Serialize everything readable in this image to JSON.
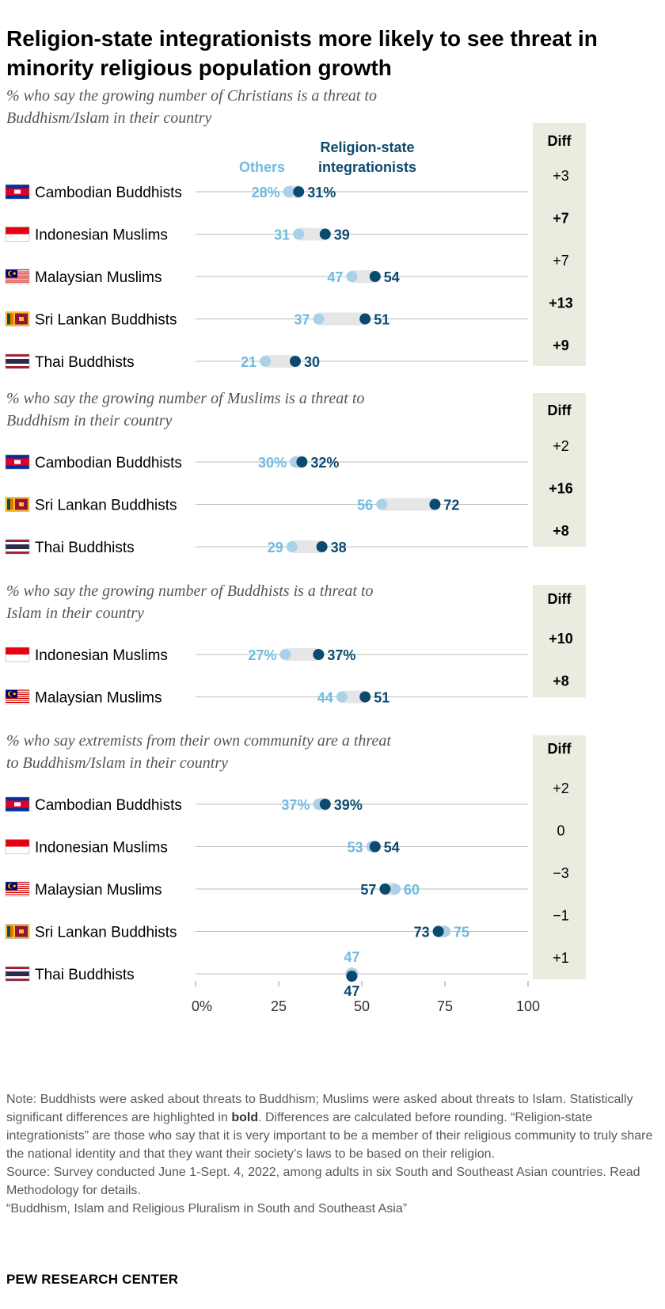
{
  "title": "Religion-state integrationists more likely to see threat in minority religious population growth",
  "legend": {
    "others": "Others",
    "integrationists_line1": "Religion-state",
    "integrationists_line2": "integrationists"
  },
  "diff_header": "Diff",
  "colors": {
    "others": "#a9d1ea",
    "others_text": "#6fbbe0",
    "integrationists": "#0b4a6f",
    "diff_bg": "#ecebdf",
    "gap_bar": "#e6e6e6",
    "axis_line": "#bdbdbd"
  },
  "chart_data": {
    "type": "dot",
    "xlim": [
      0,
      100
    ],
    "x_ticks": [
      "0%",
      "25",
      "50",
      "75",
      "100"
    ],
    "panels": [
      {
        "subtitle": [
          "% who say the growing number of Christians is a threat to",
          "Buddhism/Islam in their country"
        ],
        "rows": [
          {
            "label": "Cambodian Buddhists",
            "flag": "cambodia-flag-icon",
            "others": 28,
            "integrationists": 31,
            "others_label": "28%",
            "integrationists_label": "31%",
            "diff": "+3",
            "significant": false
          },
          {
            "label": "Indonesian Muslims",
            "flag": "indonesia-flag-icon",
            "others": 31,
            "integrationists": 39,
            "others_label": "31",
            "integrationists_label": "39",
            "diff": "+7",
            "significant": true
          },
          {
            "label": "Malaysian Muslims",
            "flag": "malaysia-flag-icon",
            "others": 47,
            "integrationists": 54,
            "others_label": "47",
            "integrationists_label": "54",
            "diff": "+7",
            "significant": false
          },
          {
            "label": "Sri Lankan Buddhists",
            "flag": "sri-lanka-flag-icon",
            "others": 37,
            "integrationists": 51,
            "others_label": "37",
            "integrationists_label": "51",
            "diff": "+13",
            "significant": true
          },
          {
            "label": "Thai Buddhists",
            "flag": "thailand-flag-icon",
            "others": 21,
            "integrationists": 30,
            "others_label": "21",
            "integrationists_label": "30",
            "diff": "+9",
            "significant": true
          }
        ]
      },
      {
        "subtitle": [
          "% who say the growing number of Muslims is a threat to",
          "Buddhism in their country"
        ],
        "rows": [
          {
            "label": "Cambodian Buddhists",
            "flag": "cambodia-flag-icon",
            "others": 30,
            "integrationists": 32,
            "others_label": "30%",
            "integrationists_label": "32%",
            "diff": "+2",
            "significant": false
          },
          {
            "label": "Sri Lankan Buddhists",
            "flag": "sri-lanka-flag-icon",
            "others": 56,
            "integrationists": 72,
            "others_label": "56",
            "integrationists_label": "72",
            "diff": "+16",
            "significant": true
          },
          {
            "label": "Thai Buddhists",
            "flag": "thailand-flag-icon",
            "others": 29,
            "integrationists": 38,
            "others_label": "29",
            "integrationists_label": "38",
            "diff": "+8",
            "significant": true
          }
        ]
      },
      {
        "subtitle": [
          "% who say the growing number of Buddhists is a threat to",
          "Islam in their country"
        ],
        "rows": [
          {
            "label": "Indonesian Muslims",
            "flag": "indonesia-flag-icon",
            "others": 27,
            "integrationists": 37,
            "others_label": "27%",
            "integrationists_label": "37%",
            "diff": "+10",
            "significant": true
          },
          {
            "label": "Malaysian Muslims",
            "flag": "malaysia-flag-icon",
            "others": 44,
            "integrationists": 51,
            "others_label": "44",
            "integrationists_label": "51",
            "diff": "+8",
            "significant": true
          }
        ]
      },
      {
        "subtitle": [
          "% who say extremists from their own community are a threat",
          "to Buddhism/Islam in their country"
        ],
        "rows": [
          {
            "label": "Cambodian Buddhists",
            "flag": "cambodia-flag-icon",
            "others": 37,
            "integrationists": 39,
            "others_label": "37%",
            "integrationists_label": "39%",
            "diff": "+2",
            "significant": false
          },
          {
            "label": "Indonesian Muslims",
            "flag": "indonesia-flag-icon",
            "others": 53,
            "integrationists": 54,
            "others_label": "53",
            "integrationists_label": "54",
            "diff": "0",
            "significant": false
          },
          {
            "label": "Malaysian Muslims",
            "flag": "malaysia-flag-icon",
            "others": 60,
            "integrationists": 57,
            "others_label": "60",
            "integrationists_label": "57",
            "diff": "−3",
            "significant": false
          },
          {
            "label": "Sri Lankan Buddhists",
            "flag": "sri-lanka-flag-icon",
            "others": 75,
            "integrationists": 73,
            "others_label": "75",
            "integrationists_label": "73",
            "diff": "−1",
            "significant": false
          },
          {
            "label": "Thai Buddhists",
            "flag": "thailand-flag-icon",
            "others": 47,
            "integrationists": 47,
            "others_label": "47",
            "integrationists_label": "47",
            "diff": "+1",
            "significant": false
          }
        ]
      }
    ]
  },
  "footer": {
    "note_prefix": "Note: Buddhists were asked about threats to Buddhism; Muslims were asked about threats to Islam. Statistically significant differences are highlighted in ",
    "note_bold": "bold",
    "note_suffix": ". Differences are calculated before rounding. “Religion-state integrationists” are those who say that it is very important to be a member of their religious community to truly share the national identity and that they want their society’s laws to be based on their religion.",
    "source": "Source: Survey conducted June 1-Sept. 4, 2022, among adults in six South and Southeast Asian countries. Read Methodology for details.",
    "report": "“Buddhism, Islam and Religious Pluralism in South and Southeast Asia”",
    "brand": "PEW RESEARCH CENTER"
  }
}
